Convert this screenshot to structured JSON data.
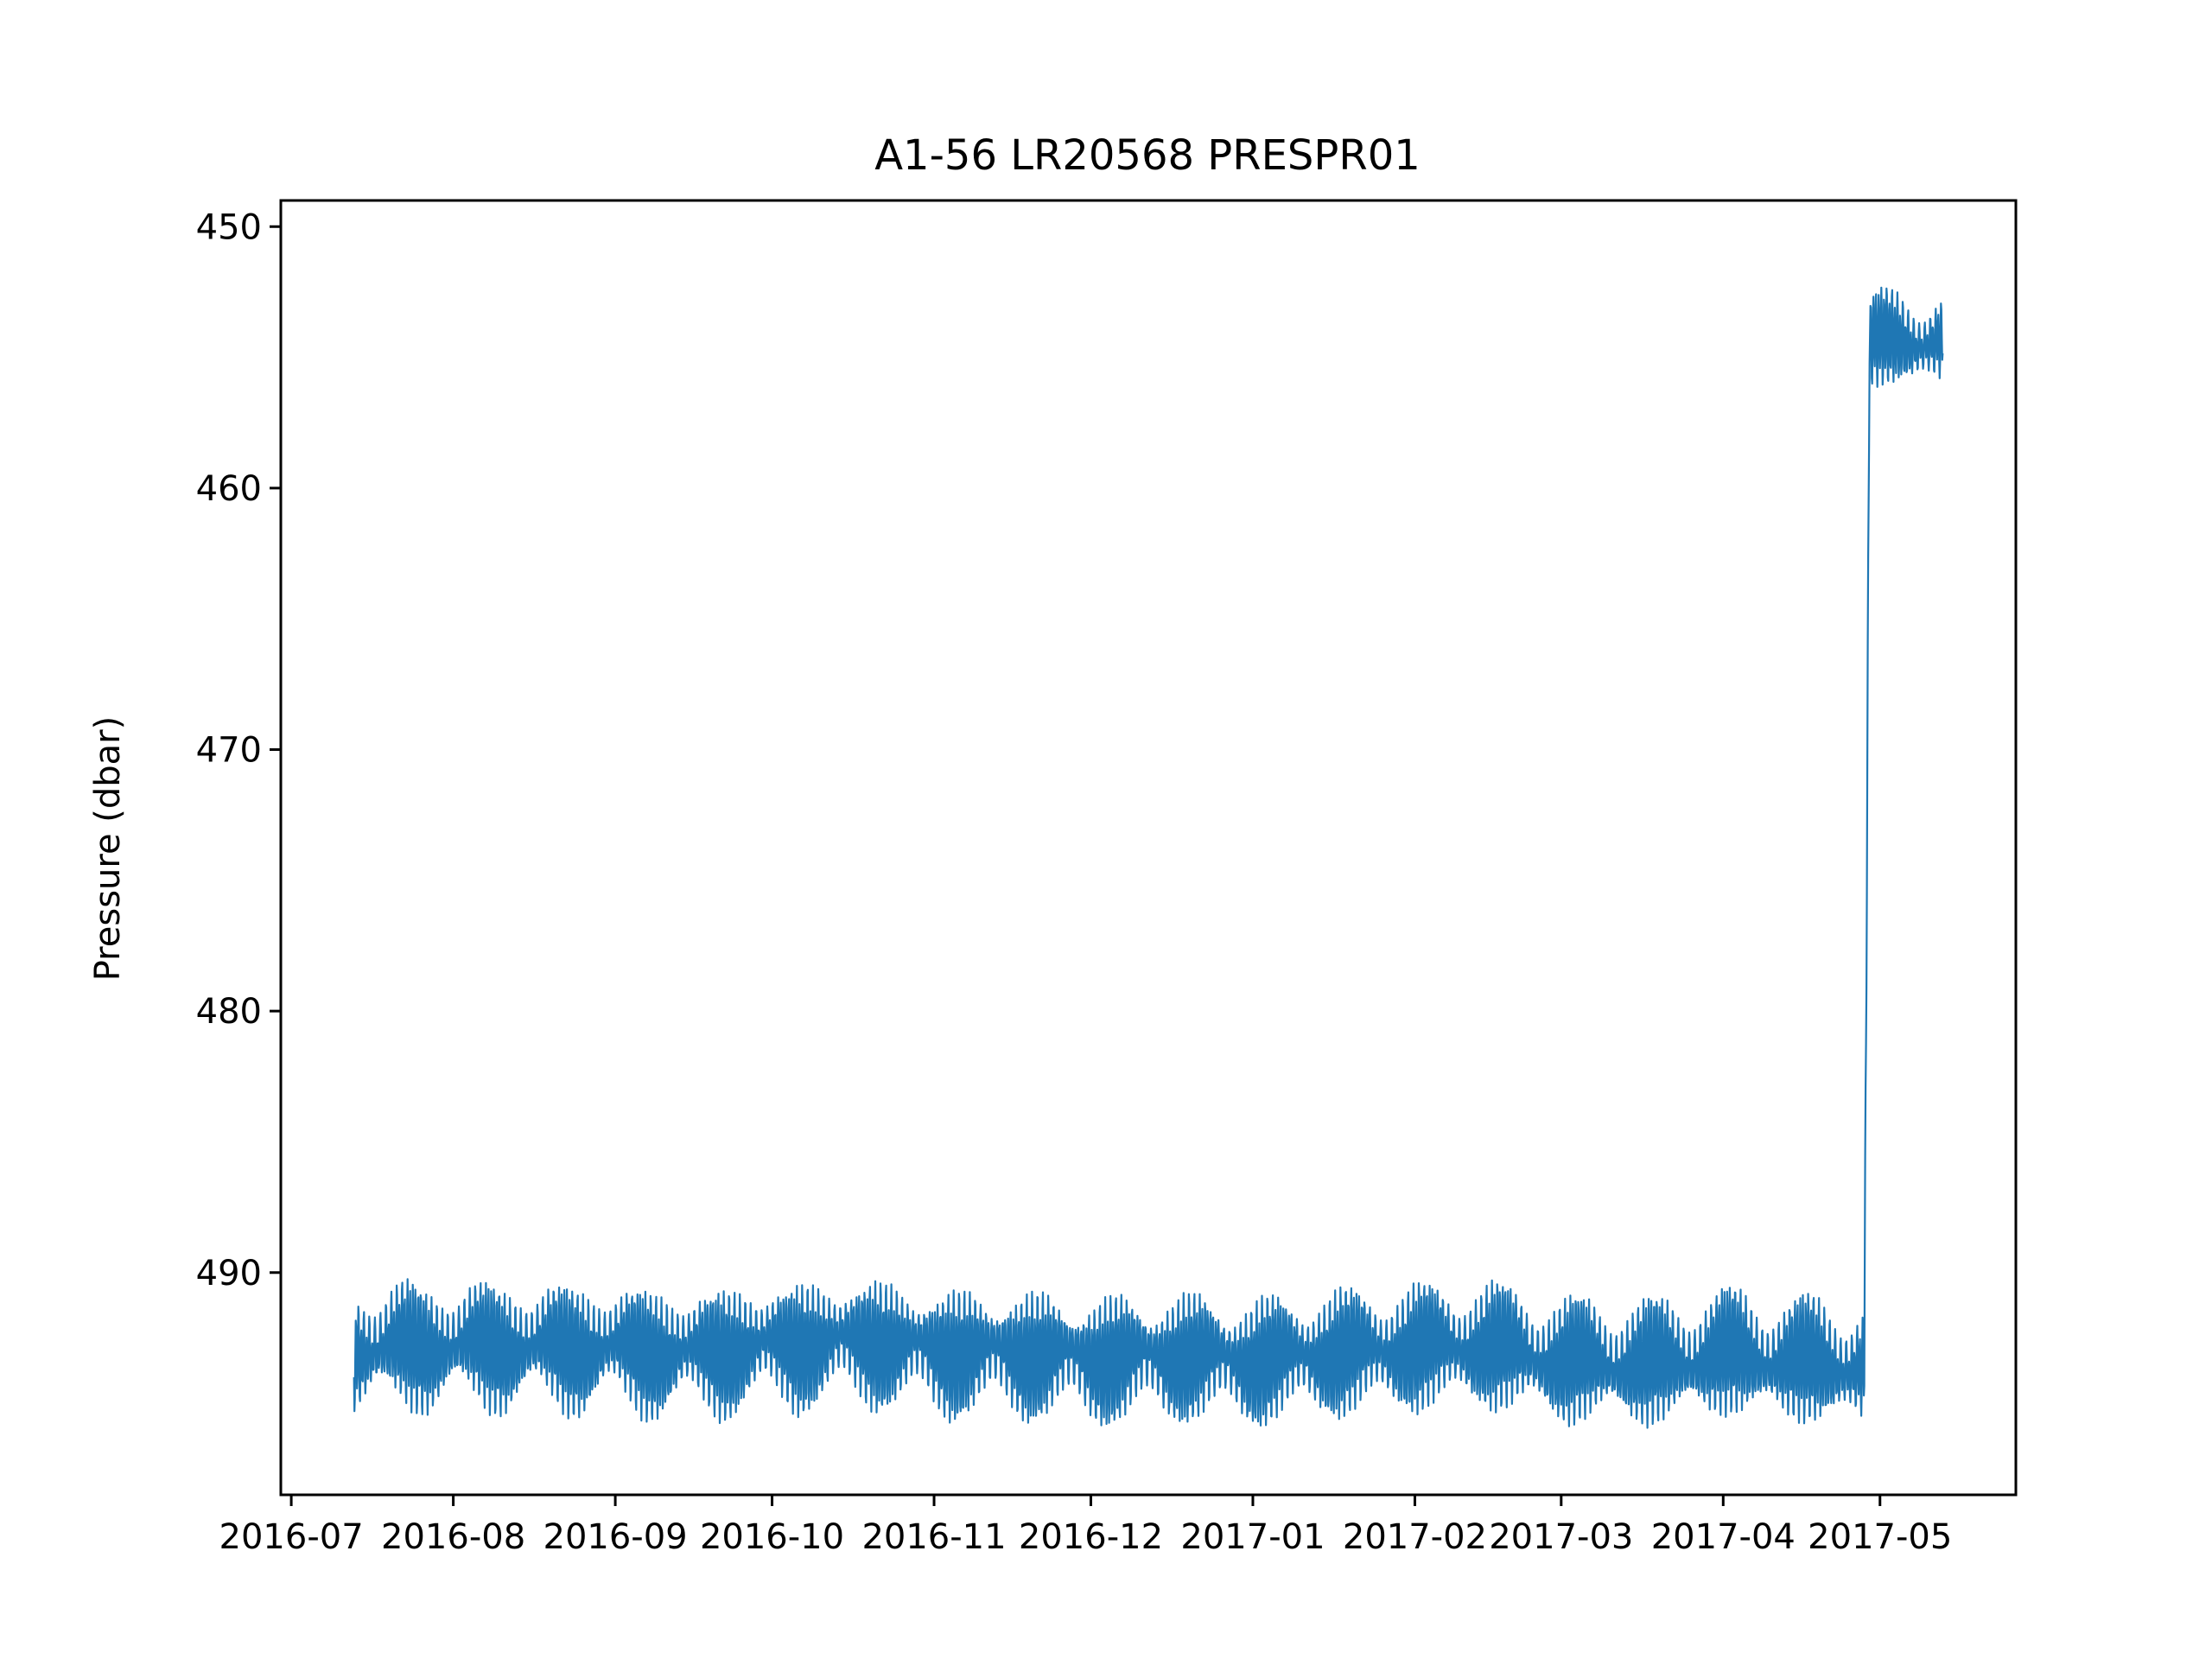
{
  "chart_data": {
    "type": "line",
    "title": "A1-56 LR20568 PRESPR01",
    "xlabel": "",
    "ylabel": "Pressure (dbar)",
    "x_ticks": [
      "2016-07",
      "2016-08",
      "2016-09",
      "2016-10",
      "2016-11",
      "2016-12",
      "2017-01",
      "2017-02",
      "2017-03",
      "2017-04",
      "2017-05"
    ],
    "y_ticks": [
      450,
      460,
      470,
      480,
      490
    ],
    "xlim": [
      "2016-06-29",
      "2017-05-27"
    ],
    "ylim": [
      498.5,
      449
    ],
    "y_inverted": true,
    "grid": false,
    "series_color": "#1f77b4",
    "series": [
      {
        "x": [
          "2016-07-13",
          "2016-08-01",
          "2016-09-01",
          "2016-09-15",
          "2016-10-01",
          "2016-10-20",
          "2016-11-01",
          "2016-11-20",
          "2016-12-01",
          "2016-12-20",
          "2017-01-01",
          "2017-01-15",
          "2017-02-01",
          "2017-02-15",
          "2017-03-01",
          "2017-03-20",
          "2017-04-01",
          "2017-04-15",
          "2017-04-28",
          "2017-04-29",
          "2017-05-05",
          "2017-05-13"
        ],
        "y": [
          492.9,
          492.8,
          492.9,
          493.1,
          492.8,
          492.6,
          493.0,
          493.1,
          493.3,
          493.2,
          493.4,
          493.1,
          492.9,
          492.8,
          493.4,
          493.5,
          493.1,
          493.4,
          493.6,
          454.5,
          454.3,
          454.4
        ],
        "noise_amplitude": [
          2.0,
          2.0,
          2.0,
          2.0,
          2.0,
          2.0,
          2.0,
          2.0,
          2.0,
          2.0,
          2.0,
          2.0,
          2.0,
          2.0,
          2.0,
          2.0,
          2.0,
          2.0,
          2.0,
          1.5,
          1.5,
          1.5
        ]
      }
    ]
  }
}
